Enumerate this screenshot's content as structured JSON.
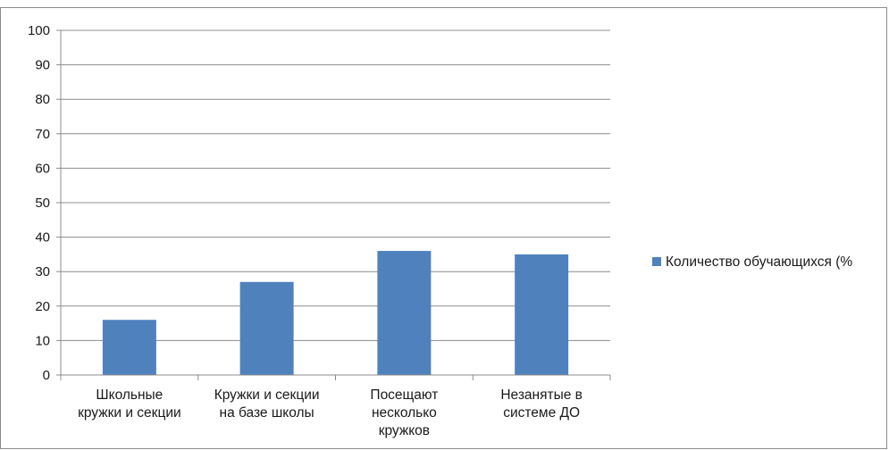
{
  "chart_data": {
    "type": "bar",
    "categories": [
      [
        "Школьные",
        "кружки и секции"
      ],
      [
        "Кружки и секции",
        "на базе школы"
      ],
      [
        "Посещают",
        "несколько",
        "кружков"
      ],
      [
        "Незанятые в",
        "системе ДО"
      ]
    ],
    "series": [
      {
        "name": "Количество обучающихся (%",
        "values": [
          16,
          27,
          36,
          35
        ],
        "color": "#4f81bd"
      }
    ],
    "ylim": [
      0,
      100
    ],
    "yticks": [
      0,
      10,
      20,
      30,
      40,
      50,
      60,
      70,
      80,
      90,
      100
    ],
    "grid": true,
    "legend_position": "right",
    "title": "",
    "xlabel": "",
    "ylabel": ""
  }
}
